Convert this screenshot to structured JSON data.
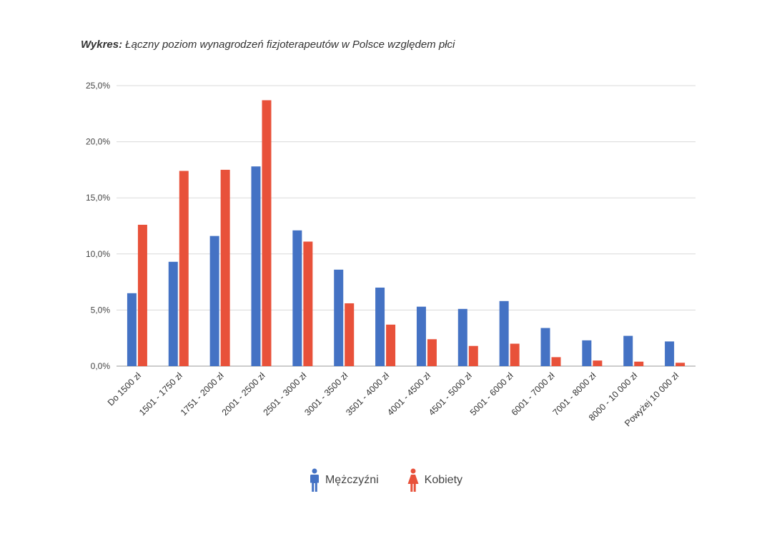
{
  "title": {
    "prefix": "Wykres:",
    "text": "Łączny poziom wynagrodzeń fizjoterapeutów w Polsce względem płci"
  },
  "colors": {
    "men": "#4472c4",
    "women": "#e8513a",
    "grid": "#d9d9d9"
  },
  "legend": {
    "men_label": "Mężczyźni",
    "women_label": "Kobiety",
    "men_icon": "man-icon",
    "women_icon": "woman-icon"
  },
  "chart_data": {
    "type": "bar",
    "title": "Łączny poziom wynagrodzeń fizjoterapeutów w Polsce względem płci",
    "xlabel": "",
    "ylabel": "",
    "ylim": [
      0,
      25
    ],
    "yticks": [
      "0,0%",
      "5,0%",
      "10,0%",
      "15,0%",
      "20,0%",
      "25,0%"
    ],
    "grid": true,
    "legend_position": "bottom",
    "categories": [
      "Do 1500 zł",
      "1501 - 1750 zł",
      "1751 - 2000 zł",
      "2001 - 2500 zł",
      "2501 - 3000 zł",
      "3001 - 3500 zł",
      "3501 - 4000 zł",
      "4001 - 4500 zł",
      "4501 - 5000 zł",
      "5001 - 6000 zł",
      "6001 - 7000 zł",
      "7001 - 8000 zł",
      "8000 - 10 000 zł",
      "Powyżej 10 000 zł"
    ],
    "series": [
      {
        "name": "Mężczyźni",
        "values": [
          6.5,
          9.3,
          11.6,
          17.8,
          12.1,
          8.6,
          7.0,
          5.3,
          5.1,
          5.8,
          3.4,
          2.3,
          2.7,
          2.2
        ]
      },
      {
        "name": "Kobiety",
        "values": [
          12.6,
          17.4,
          17.5,
          23.7,
          11.1,
          5.6,
          3.7,
          2.4,
          1.8,
          2.0,
          0.8,
          0.5,
          0.4,
          0.3
        ]
      }
    ]
  }
}
